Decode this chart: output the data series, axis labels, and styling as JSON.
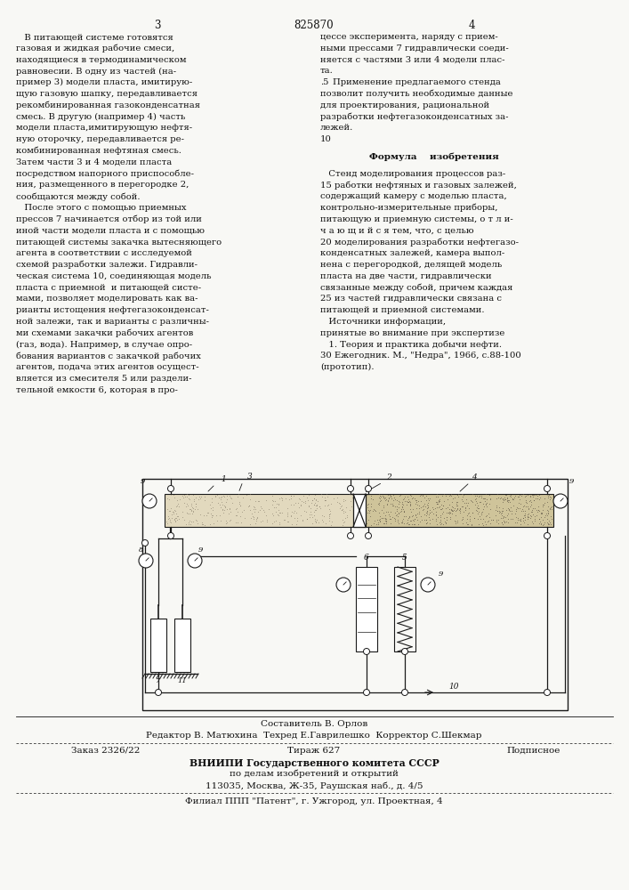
{
  "page_number_left": "3",
  "patent_number": "825870",
  "page_number_right": "4",
  "text_col1": [
    "   В питающей системе готовятся",
    "газовая и жидкая рабочие смеси,",
    "находящиеся в термодинамическом",
    "равновесии. В одну из частей (на-",
    "пример 3) модели пласта, имитирую-",
    "щую газовую шапку, передавливается",
    "рекомбинированная газоконденсатная",
    "смесь. В другую (например 4) часть",
    "модели пласта,имитирующую нефтя-",
    "ную оторочку, передавливается ре-",
    "комбинированная нефтяная смесь.",
    "Затем части 3 и 4 модели пласта",
    "посредством напорного приспособле-",
    "ния, размещенного в перегородке 2,",
    "сообщаются между собой.",
    "   После этого с помощью приемных",
    "прессов 7 начинается отбор из той или",
    "иной части модели пласта и с помощью",
    "питающей системы закачка вытесняющего",
    "агента в соответствии с исследуемой",
    "схемой разработки залежи. Гидравли-",
    "ческая система 10, соединяющая модель",
    "пласта с приемной  и питающей систе-",
    "мами, позволяет моделировать как ва-",
    "рианты истощения нефтегазоконденсат-",
    "ной залежи, так и варианты с различны-",
    "ми схемами закачки рабочих агентов",
    "(газ, вода). Например, в случае опро-",
    "бования вариантов с закачкой рабочих",
    "агентов, подача этих агентов осущест-",
    "вляется из смесителя 5 или раздели-",
    "тельной емкости 6, которая в про-"
  ],
  "text_col2_line1": "цессе эксперимента, наряду с прием-",
  "text_col2_line2": "ными прессами 7 гидравлически соеди-",
  "text_col2_line3": "няется с частями 3 или 4 модели плас-",
  "text_col2_line4": "та.",
  "text_col2_line5_indent": ".5",
  "text_col2_line5": "   Применение предлагаемого стенда",
  "text_col2_line6": "позволит получить необходимые данные",
  "text_col2_line7": "для проектирования, рациональной",
  "text_col2_line8": "разработки нефтегазоконденсатных за-",
  "text_col2_line9": "лежей.",
  "text_col2_line10_num": "10",
  "text_col2_formula_title": "Формула    изобретения",
  "text_col2_main": [
    "   Стенд моделирования процессов раз-",
    "15 работки нефтяных и газовых залежей,",
    "содержащий камеру с моделью пласта,",
    "контрольно-измерительные приборы,",
    "питающую и приемную системы, о т л и-",
    "ч а ю щ и й с я тем, что, с целью",
    "20 моделирования разработки нефтегазо-",
    "конденсатных залежей, камера выпол-",
    "нена с перегородкой, делящей модель",
    "пласта на две части, гидравлически",
    "связанные между собой, причем каждая",
    "25 из частей гидравлически связана с",
    "питающей и приемной системами.",
    "   Источники информации,",
    "принятые во внимание при экспертизе",
    "   1. Теория и практика добычи нефти.",
    "30 Ежегодник. М., \"Недра\", 1966, с.88-100",
    "(прототип)."
  ],
  "footer_line1": "Составитель В. Орлов",
  "footer_line2": "Редактор В. Матюхина  Техред Е.Гаврилешко  Корректор С.Шекмар",
  "footer_order": "Заказ 2326/22",
  "footer_tirazh": "Тираж 627",
  "footer_podp": "Подписное",
  "footer_org1": "ВНИИПИ Государственного комитета СССР",
  "footer_org2": "по делам изобретений и открытий",
  "footer_addr": "113035, Москва, Ж-35, Раушская наб., д. 4/5",
  "footer_filial": "Филиал ППП \"Патент\", г. Ужгород, ул. Проектная, 4",
  "bg_color": "#f8f8f5",
  "text_color": "#111111"
}
